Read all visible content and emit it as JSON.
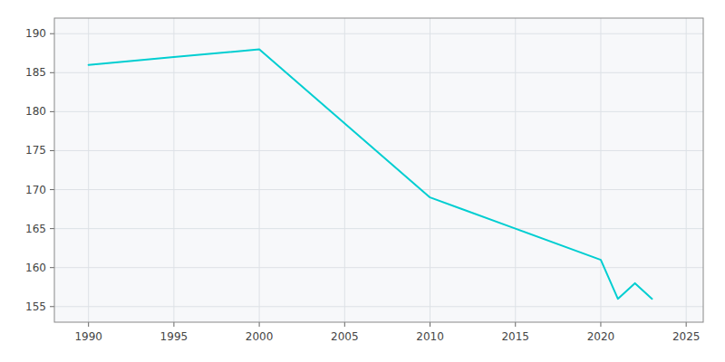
{
  "chart_data": {
    "type": "line",
    "x": [
      1990,
      1995,
      2000,
      2010,
      2015,
      2020,
      2021,
      2022,
      2023
    ],
    "values": [
      186,
      187,
      188,
      169,
      165,
      161,
      156,
      158,
      156
    ],
    "color": "#00CED1",
    "xlim": [
      1988,
      2026
    ],
    "ylim": [
      153,
      192
    ],
    "xticks": [
      1990,
      1995,
      2000,
      2005,
      2010,
      2015,
      2020,
      2025
    ],
    "yticks": [
      155,
      160,
      165,
      170,
      175,
      180,
      185,
      190
    ],
    "grid": true
  }
}
